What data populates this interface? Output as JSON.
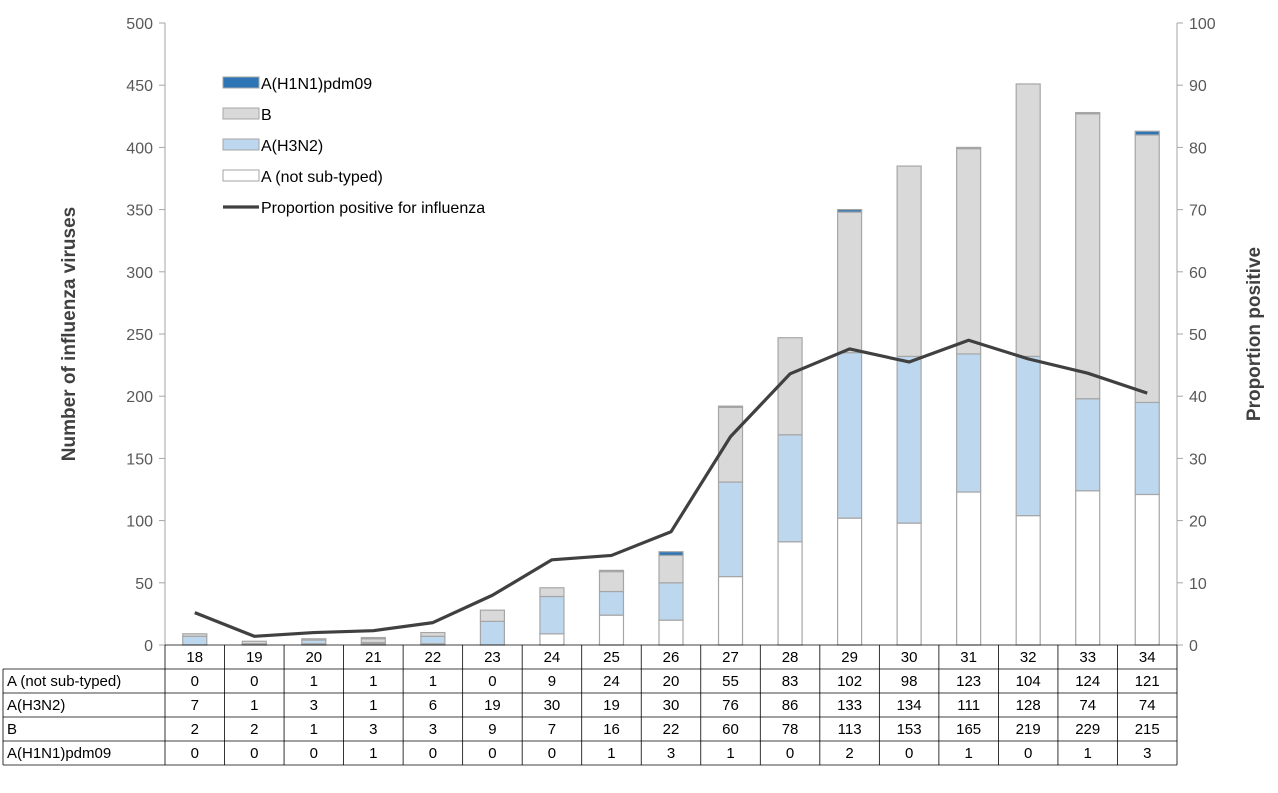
{
  "chart_data": {
    "type": "bar",
    "stacked": true,
    "categories": [
      "18",
      "19",
      "20",
      "21",
      "22",
      "23",
      "24",
      "25",
      "26",
      "27",
      "28",
      "29",
      "30",
      "31",
      "32",
      "33",
      "34"
    ],
    "series": [
      {
        "name": "A (not sub-typed)",
        "color": "#ffffff",
        "values": [
          0,
          0,
          1,
          1,
          1,
          0,
          9,
          24,
          20,
          55,
          83,
          102,
          98,
          123,
          104,
          124,
          121
        ]
      },
      {
        "name": "A(H3N2)",
        "color": "#bdd7ee",
        "values": [
          7,
          1,
          3,
          1,
          6,
          19,
          30,
          19,
          30,
          76,
          86,
          133,
          134,
          111,
          128,
          74,
          74
        ]
      },
      {
        "name": "B",
        "color": "#d9d9d9",
        "values": [
          2,
          2,
          1,
          3,
          3,
          9,
          7,
          16,
          22,
          60,
          78,
          113,
          153,
          165,
          219,
          229,
          215
        ]
      },
      {
        "name": "A(H1N1)pdm09",
        "color": "#2e75b6",
        "values": [
          0,
          0,
          0,
          1,
          0,
          0,
          0,
          1,
          3,
          1,
          0,
          2,
          0,
          1,
          0,
          1,
          3
        ]
      }
    ],
    "line_series": {
      "name": "Proportion positive for influenza",
      "color": "#404040",
      "axis": "right",
      "values": [
        5.2,
        1.4,
        2.0,
        2.3,
        3.6,
        8.0,
        13.7,
        14.4,
        18.2,
        33.5,
        43.6,
        47.6,
        45.5,
        49.0,
        46.0,
        43.7,
        40.5
      ]
    },
    "ylabel": "Number of influenza viruses",
    "y2label": "Proportion positive",
    "ylim": [
      0,
      500
    ],
    "y2lim": [
      0,
      100
    ],
    "yticks": [
      "0",
      "50",
      "100",
      "150",
      "200",
      "250",
      "300",
      "350",
      "400",
      "450",
      "500"
    ],
    "y2ticks": [
      "0",
      "10",
      "20",
      "30",
      "40",
      "50",
      "60",
      "70",
      "80",
      "90",
      "100"
    ],
    "legend": {
      "placement": "top-left",
      "entries": [
        "A(H1N1)pdm09",
        "B",
        "A(H3N2)",
        "A (not sub-typed)",
        "Proportion positive for influenza"
      ]
    },
    "table_rows": [
      {
        "label": "A (not sub-typed)",
        "values": [
          "0",
          "0",
          "1",
          "1",
          "1",
          "0",
          "9",
          "24",
          "20",
          "55",
          "83",
          "102",
          "98",
          "123",
          "104",
          "124",
          "121"
        ]
      },
      {
        "label": "A(H3N2)",
        "values": [
          "7",
          "1",
          "3",
          "1",
          "6",
          "19",
          "30",
          "19",
          "30",
          "76",
          "86",
          "133",
          "134",
          "111",
          "128",
          "74",
          "74"
        ]
      },
      {
        "label": "B",
        "values": [
          "2",
          "2",
          "1",
          "3",
          "3",
          "9",
          "7",
          "16",
          "22",
          "60",
          "78",
          "113",
          "153",
          "165",
          "219",
          "229",
          "215"
        ]
      },
      {
        "label": "A(H1N1)pdm09",
        "values": [
          "0",
          "0",
          "0",
          "1",
          "0",
          "0",
          "0",
          "1",
          "3",
          "1",
          "0",
          "2",
          "0",
          "1",
          "0",
          "1",
          "3"
        ]
      }
    ],
    "grid": false
  }
}
